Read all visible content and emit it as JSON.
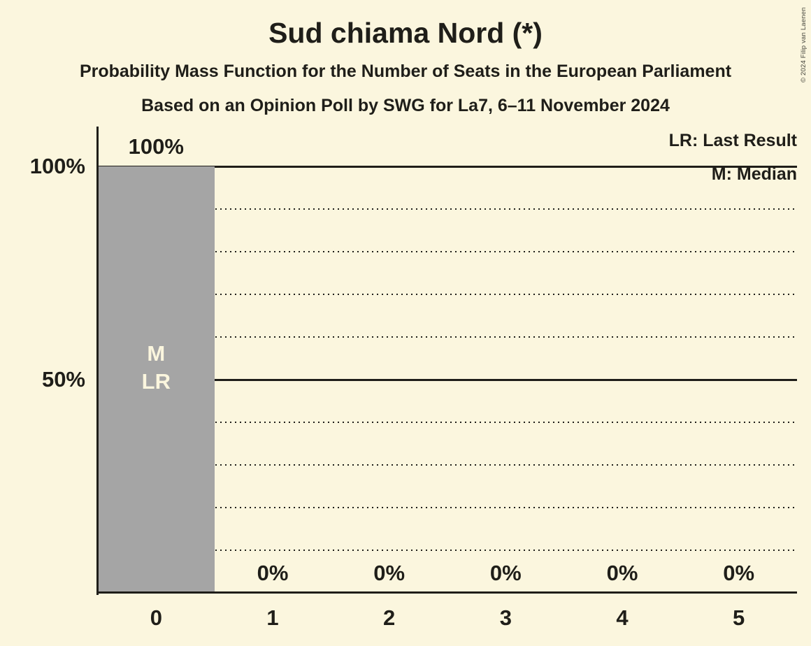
{
  "copyright": "© 2024 Filip van Laenen",
  "chart_data": {
    "type": "bar",
    "title": "Sud chiama Nord (*)",
    "subtitle": "Probability Mass Function for the Number of Seats in the European Parliament",
    "source_line": "Based on an Opinion Poll by SWG for La7, 6–11 November 2024",
    "xlabel": "",
    "ylabel": "",
    "categories": [
      "0",
      "1",
      "2",
      "3",
      "4",
      "5"
    ],
    "values": [
      100,
      0,
      0,
      0,
      0,
      0
    ],
    "value_labels": [
      "100%",
      "0%",
      "0%",
      "0%",
      "0%",
      "0%"
    ],
    "bar_annotations": [
      [
        "M",
        "LR"
      ],
      [],
      [],
      [],
      [],
      []
    ],
    "median_seats": 0,
    "last_result_seats": 0,
    "legend": [
      {
        "label": "LR: Last Result"
      },
      {
        "label": "M: Median"
      }
    ],
    "ylim": [
      0,
      100
    ],
    "y_axis_ticks": [
      {
        "value": 100,
        "label": "100%"
      },
      {
        "value": 50,
        "label": "50%"
      }
    ],
    "gridlines": {
      "solid": [
        50,
        100
      ],
      "dotted": [
        10,
        20,
        30,
        40,
        60,
        70,
        80,
        90
      ]
    },
    "colors": {
      "background": "#fbf6de",
      "bar": "#a5a5a5",
      "bar_label": "#fbf6de",
      "text": "#1f1e19"
    }
  }
}
